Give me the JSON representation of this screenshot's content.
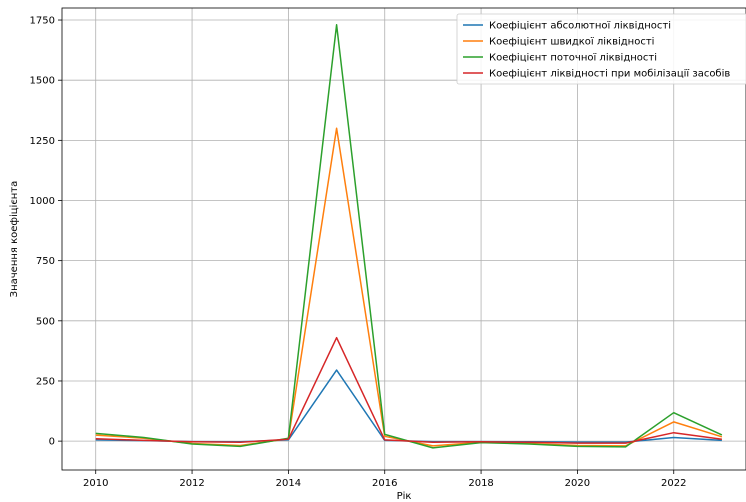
{
  "chart_data": {
    "type": "line",
    "title": "",
    "xlabel": "Рік",
    "ylabel": "Значення коефіцієнта",
    "xlim": [
      2009.3,
      2023.5
    ],
    "ylim": [
      -120,
      1800
    ],
    "x_ticks": [
      2010,
      2012,
      2014,
      2016,
      2018,
      2020,
      2022
    ],
    "y_ticks": [
      0,
      250,
      500,
      750,
      1000,
      1250,
      1500,
      1750
    ],
    "grid": true,
    "legend_position": "top-right",
    "x": [
      2010,
      2011,
      2012,
      2013,
      2014,
      2015,
      2016,
      2017,
      2018,
      2019,
      2020,
      2021,
      2022,
      2023
    ],
    "series": [
      {
        "name": "Коефіцієнт абсолютної ліквідності",
        "color": "#1f77b4",
        "values": [
          5,
          2,
          -2,
          -3,
          5,
          295,
          3,
          -2,
          -2,
          -3,
          -4,
          -4,
          15,
          3
        ]
      },
      {
        "name": "Коефіцієнт швидкої ліквідності",
        "color": "#ff7f0e",
        "values": [
          25,
          12,
          -10,
          -18,
          10,
          1300,
          20,
          -20,
          -5,
          -10,
          -18,
          -20,
          80,
          18
        ]
      },
      {
        "name": "Коефіцієнт поточної ліквідності",
        "color": "#2ca02c",
        "values": [
          32,
          15,
          -12,
          -22,
          12,
          1730,
          28,
          -28,
          -6,
          -12,
          -22,
          -24,
          118,
          26
        ]
      },
      {
        "name": "Коефіцієнт ліквідності при мобілізації засобів",
        "color": "#d62728",
        "values": [
          10,
          3,
          -3,
          -5,
          8,
          430,
          5,
          -5,
          -3,
          -5,
          -8,
          -8,
          35,
          8
        ]
      }
    ]
  }
}
